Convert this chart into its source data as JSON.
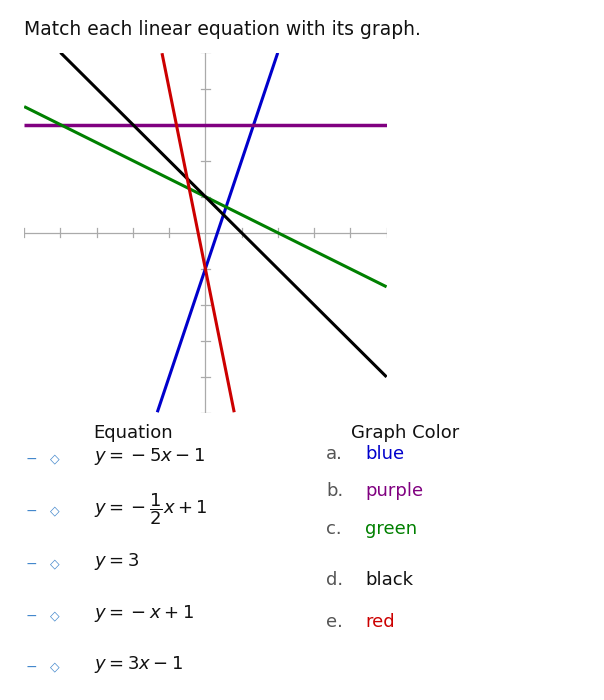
{
  "title": "Match each linear equation with its graph.",
  "graph_xlim": [
    -5,
    5
  ],
  "graph_ylim": [
    -5,
    5
  ],
  "lines": [
    {
      "slope": 3,
      "intercept": -1,
      "color": "#0000cc",
      "lw": 2.2
    },
    {
      "slope": 0,
      "intercept": 3,
      "color": "#800080",
      "lw": 2.5
    },
    {
      "slope": -0.5,
      "intercept": 1,
      "color": "#008000",
      "lw": 2.2
    },
    {
      "slope": -1,
      "intercept": 1,
      "color": "#000000",
      "lw": 2.2
    },
    {
      "slope": -5,
      "intercept": -1,
      "color": "#cc0000",
      "lw": 2.2
    }
  ],
  "equation_labels": [
    "$y = -5x - 1$",
    "$y = -\\dfrac{1}{2}x + 1$",
    "$y = 3$",
    "$y = -x + 1$",
    "$y = 3x - 1$"
  ],
  "color_letters": [
    "a.",
    "b.",
    "c.",
    "d.",
    "e."
  ],
  "color_names": [
    "blue",
    "purple",
    "green",
    "black",
    "red"
  ],
  "color_hex": [
    "#0000cc",
    "#800080",
    "#008000",
    "#111111",
    "#cc0000"
  ],
  "bg_color": "#ffffff",
  "tick_color": "#aaaaaa",
  "axis_color": "#aaaaaa"
}
